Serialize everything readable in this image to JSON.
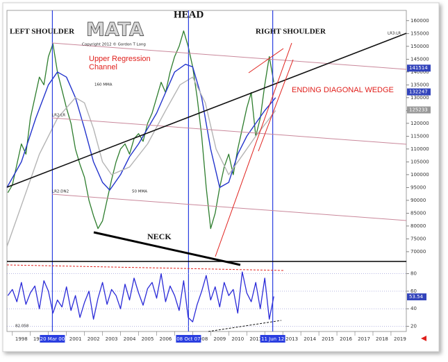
{
  "chart_data": [
    {
      "type": "line",
      "xlim": [
        1997.7,
        2019.85
      ],
      "xticks": [
        1998,
        1999,
        2000,
        2001,
        2002,
        2003,
        2004,
        2005,
        2006,
        2007,
        2008,
        2009,
        2010,
        2011,
        2012,
        2013,
        2014,
        2015,
        2016,
        2017,
        2018,
        2019
      ],
      "ylim": [
        66200,
        164000
      ],
      "yticks": [
        70000,
        75000,
        80000,
        85000,
        90000,
        95000,
        100000,
        105000,
        110000,
        115000,
        120000,
        125000,
        130000,
        135000,
        140000,
        145000,
        150000,
        155000,
        160000
      ],
      "series": [
        {
          "color": "#2d7d2d",
          "x": [
            1997.75,
            1998.0,
            1998.25,
            1998.5,
            1998.75,
            1999.0,
            1999.25,
            1999.5,
            1999.75,
            2000.0,
            2000.25,
            2000.5,
            2000.75,
            2001.0,
            2001.25,
            2001.5,
            2001.75,
            2002.0,
            2002.25,
            2002.5,
            2002.75,
            2003.0,
            2003.25,
            2003.5,
            2003.75,
            2004.0,
            2004.25,
            2004.5,
            2004.75,
            2005.0,
            2005.25,
            2005.5,
            2005.75,
            2006.0,
            2006.25,
            2006.5,
            2006.75,
            2007.0,
            2007.25,
            2007.5,
            2007.75,
            2008.0,
            2008.25,
            2008.5,
            2008.75,
            2009.0,
            2009.25,
            2009.5,
            2009.75,
            2010.0,
            2010.25,
            2010.5,
            2010.75,
            2011.0,
            2011.25,
            2011.5,
            2011.75,
            2012.0,
            2012.25,
            2012.5
          ],
          "values": [
            93000,
            96000,
            104000,
            112000,
            108000,
            122000,
            130000,
            138000,
            135000,
            146000,
            151000,
            140000,
            133000,
            126000,
            120000,
            110000,
            104000,
            99000,
            90000,
            84000,
            79000,
            82000,
            90000,
            98000,
            105000,
            110000,
            112000,
            108000,
            114000,
            116000,
            113000,
            120000,
            124000,
            130000,
            136000,
            132000,
            140000,
            146000,
            150000,
            156000,
            150000,
            142000,
            130000,
            115000,
            95000,
            79000,
            85000,
            95000,
            103000,
            108000,
            100000,
            110000,
            118000,
            126000,
            132000,
            115000,
            122000,
            135000,
            146000,
            136000
          ]
        },
        {
          "name": "50 MMA",
          "color": "#2233cc",
          "x": [
            1997.7,
            1998.5,
            1999.3,
            2000.0,
            2000.5,
            2001.0,
            2001.5,
            2002.0,
            2002.5,
            2003.0,
            2003.4,
            2004.0,
            2004.5,
            2005.0,
            2005.5,
            2006.0,
            2006.5,
            2007.0,
            2007.6,
            2008.0,
            2008.5,
            2009.0,
            2009.5,
            2010.0,
            2010.5,
            2011.0,
            2011.5,
            2012.0,
            2012.6
          ],
          "values": [
            95000,
            105000,
            122000,
            135000,
            140000,
            138000,
            130000,
            118000,
            105000,
            97000,
            94000,
            100000,
            107000,
            112000,
            118000,
            124000,
            132000,
            140000,
            143000,
            142000,
            130000,
            110000,
            95000,
            97000,
            108000,
            115000,
            120000,
            125000,
            130000
          ]
        },
        {
          "name": "160 MMA",
          "color": "#b4b4b4",
          "x": [
            1997.7,
            1998.5,
            1999.5,
            2000.5,
            2001.5,
            2002.0,
            2002.5,
            2003.0,
            2003.5,
            2004.5,
            2005.5,
            2006.5,
            2007.3,
            2008.0,
            2008.7,
            2009.3,
            2010.0,
            2010.8,
            2011.5,
            2012.6
          ],
          "values": [
            72000,
            88000,
            108000,
            122000,
            130000,
            128000,
            118000,
            105000,
            100000,
            103000,
            112000,
            125000,
            135000,
            138000,
            128000,
            110000,
            100000,
            108000,
            115000,
            125000
          ]
        }
      ],
      "markers": [
        {
          "x": 2000.22,
          "label": "20 Mar 00"
        },
        {
          "x": 2007.77,
          "label": "08 Oct 07"
        },
        {
          "x": 2012.44,
          "label": "11 Jun 12"
        }
      ],
      "axis_labels": [
        {
          "value": 141514,
          "color": "#3344bb"
        },
        {
          "value": 132247,
          "color": "#3344bb"
        },
        {
          "value": 125233,
          "color": "#9a9a9a"
        }
      ],
      "annotations": [
        "LEFT SHOULDER",
        "HEAD",
        "RIGHT SHOULDER",
        "NECK",
        "MATA",
        "Copyright 2012 © Gordon T Long",
        "Upper Regression",
        "Channel",
        "ENDING DIAGONAL WEDGE",
        "160 MMA",
        "50 MMA",
        "LR3:LR",
        "LR2:LR",
        "LR2:DN2"
      ]
    },
    {
      "type": "line",
      "xlim": [
        1997.7,
        2019.85
      ],
      "ylim": [
        14,
        94
      ],
      "yticks": [
        20,
        40,
        60,
        80
      ],
      "grid": true,
      "series": [
        {
          "color": "#2a2ad8",
          "x": [
            1997.75,
            1998.0,
            1998.25,
            1998.5,
            1998.75,
            1999.0,
            1999.25,
            1999.5,
            1999.75,
            2000.0,
            2000.25,
            2000.5,
            2000.75,
            2001.0,
            2001.25,
            2001.5,
            2001.75,
            2002.0,
            2002.25,
            2002.5,
            2002.75,
            2003.0,
            2003.25,
            2003.5,
            2003.75,
            2004.0,
            2004.25,
            2004.5,
            2004.75,
            2005.0,
            2005.25,
            2005.5,
            2005.75,
            2006.0,
            2006.25,
            2006.5,
            2006.75,
            2007.0,
            2007.25,
            2007.5,
            2007.75,
            2008.0,
            2008.25,
            2008.5,
            2008.75,
            2009.0,
            2009.25,
            2009.5,
            2009.75,
            2010.0,
            2010.25,
            2010.5,
            2010.75,
            2011.0,
            2011.25,
            2011.5,
            2011.75,
            2012.0,
            2012.25,
            2012.5
          ],
          "values": [
            55,
            62,
            48,
            70,
            45,
            58,
            66,
            40,
            72,
            60,
            35,
            50,
            42,
            65,
            38,
            55,
            30,
            47,
            60,
            28,
            52,
            70,
            45,
            62,
            55,
            40,
            68,
            50,
            75,
            58,
            44,
            63,
            70,
            52,
            80,
            48,
            66,
            55,
            38,
            72,
            30,
            25,
            45,
            60,
            78,
            50,
            65,
            42,
            70,
            55,
            62,
            35,
            82,
            58,
            48,
            70,
            40,
            75,
            28,
            54
          ]
        }
      ],
      "last_value": 53.54,
      "readout": 82.058
    }
  ]
}
